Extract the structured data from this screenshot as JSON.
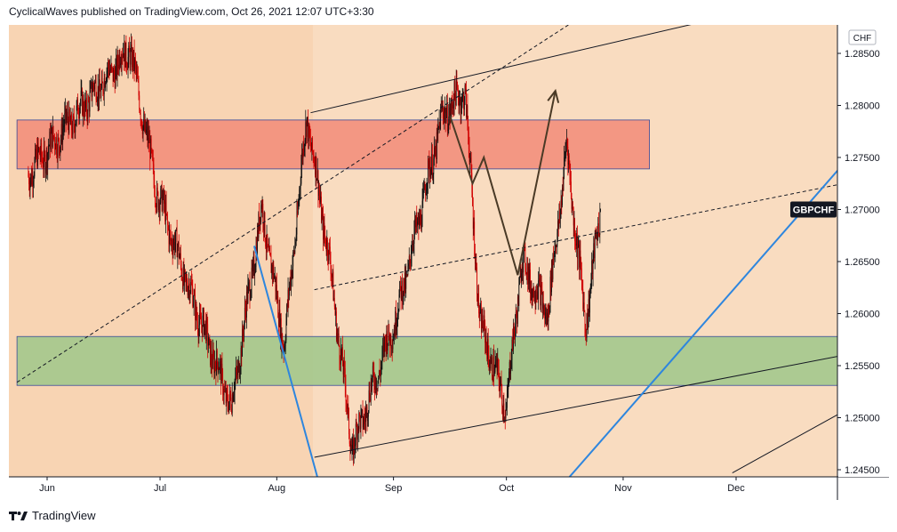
{
  "header": {
    "publisher_text": "CyclicalWaves published on TradingView.com, Oct 26, 2021 12:07 UTC+3:30"
  },
  "footer": {
    "brand": "TradingView",
    "logo_icon": "tradingview-logo-icon"
  },
  "chart_data": {
    "type": "candlestick",
    "symbol": "GBPCHF",
    "currency": "CHF",
    "x_ticks": [
      "Jun",
      "Jul",
      "Aug",
      "Sep",
      "Oct",
      "Nov",
      "Dec"
    ],
    "y_ticks": [
      "1.28500",
      "1.28000",
      "1.27500",
      "1.27000",
      "1.26500",
      "1.26000",
      "1.25500",
      "1.25000",
      "1.24500"
    ],
    "ylim": [
      1.2436,
      1.2895
    ],
    "last_price": 1.27,
    "key_points": [
      {
        "date": "2021-05-27",
        "price": 1.2735
      },
      {
        "date": "2021-06-23",
        "price": 1.2855
      },
      {
        "date": "2021-06-30",
        "price": 1.272
      },
      {
        "date": "2021-07-09",
        "price": 1.262
      },
      {
        "date": "2021-07-20",
        "price": 1.251
      },
      {
        "date": "2021-07-28",
        "price": 1.27
      },
      {
        "date": "2021-08-03",
        "price": 1.257
      },
      {
        "date": "2021-08-09",
        "price": 1.279
      },
      {
        "date": "2021-08-15",
        "price": 1.265
      },
      {
        "date": "2021-08-21",
        "price": 1.247
      },
      {
        "date": "2021-09-02",
        "price": 1.26
      },
      {
        "date": "2021-09-14",
        "price": 1.279
      },
      {
        "date": "2021-09-20",
        "price": 1.2815
      },
      {
        "date": "2021-09-24",
        "price": 1.259
      },
      {
        "date": "2021-10-01",
        "price": 1.251
      },
      {
        "date": "2021-10-05",
        "price": 1.265
      },
      {
        "date": "2021-10-12",
        "price": 1.26
      },
      {
        "date": "2021-10-17",
        "price": 1.276
      },
      {
        "date": "2021-10-22",
        "price": 1.259
      },
      {
        "date": "2021-10-26",
        "price": 1.27
      }
    ],
    "zones": [
      {
        "name": "resistance-zone",
        "from": "2021-05-24",
        "to": "2021-11-08",
        "top": 1.2786,
        "bottom": 1.2739,
        "color": "#f28b78"
      },
      {
        "name": "support-zone",
        "from": "2021-05-24",
        "to": "2021-12-31",
        "top": 1.2578,
        "bottom": 1.2531,
        "color": "#9fc78a"
      }
    ],
    "trendlines": [
      {
        "name": "channel-upper",
        "style": "solid",
        "color": "#131722",
        "from": {
          "date": "2021-08-10",
          "price": 1.2793
        },
        "to": {
          "date": "2021-12-12",
          "price": 1.2897
        }
      },
      {
        "name": "channel-lower",
        "style": "solid",
        "color": "#131722",
        "from": {
          "date": "2021-08-11",
          "price": 1.2462
        },
        "to": {
          "date": "2021-12-31",
          "price": 1.2561
        }
      },
      {
        "name": "channel-mid",
        "style": "dashed",
        "color": "#131722",
        "from": {
          "date": "2021-08-11",
          "price": 1.2623
        },
        "to": {
          "date": "2021-12-31",
          "price": 1.2726
        }
      },
      {
        "name": "long-dashed-trend",
        "style": "dashed",
        "color": "#131722",
        "from": {
          "date": "2021-05-24",
          "price": 1.2534
        },
        "to": {
          "date": "2021-10-25",
          "price": 1.2895
        }
      },
      {
        "name": "short-channel-line",
        "style": "solid",
        "color": "#131722",
        "from": {
          "date": "2021-11-30",
          "price": 1.2447
        },
        "to": {
          "date": "2021-12-31",
          "price": 1.2509
        }
      },
      {
        "name": "blue-line-left",
        "style": "solid",
        "color": "#2e86de",
        "from": {
          "date": "2021-07-26",
          "price": 1.2665
        },
        "to": {
          "date": "2021-08-12",
          "price": 1.244
        }
      },
      {
        "name": "blue-line-right",
        "style": "solid",
        "color": "#2e86de",
        "from": {
          "date": "2021-10-17",
          "price": 1.244
        },
        "to": {
          "date": "2021-12-31",
          "price": 1.275
        }
      }
    ],
    "forecast_path": [
      {
        "date": "2021-09-16",
        "price": 1.279
      },
      {
        "date": "2021-09-22",
        "price": 1.2725
      },
      {
        "date": "2021-09-25",
        "price": 1.275
      },
      {
        "date": "2021-10-04",
        "price": 1.2637
      },
      {
        "date": "2021-10-14",
        "price": 1.2814
      }
    ],
    "background_color": "#f8d4b3",
    "grid": false
  }
}
